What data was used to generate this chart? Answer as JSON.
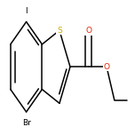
{
  "background_color": "#ffffff",
  "bond_color": "#000000",
  "S_color": "#ccaa00",
  "O_color": "#dd2200",
  "line_width": 1.1,
  "figsize": [
    1.52,
    1.52
  ],
  "dpi": 100,
  "labels": {
    "S": {
      "text": "S",
      "color": "#ccaa00",
      "fontsize": 6.5
    },
    "O1": {
      "text": "O",
      "color": "#dd2200",
      "fontsize": 6.5
    },
    "O2": {
      "text": "O",
      "color": "#dd2200",
      "fontsize": 6.5
    },
    "Br": {
      "text": "Br",
      "color": "#000000",
      "fontsize": 6.5
    },
    "I": {
      "text": "I",
      "color": "#000000",
      "fontsize": 6.5
    }
  }
}
